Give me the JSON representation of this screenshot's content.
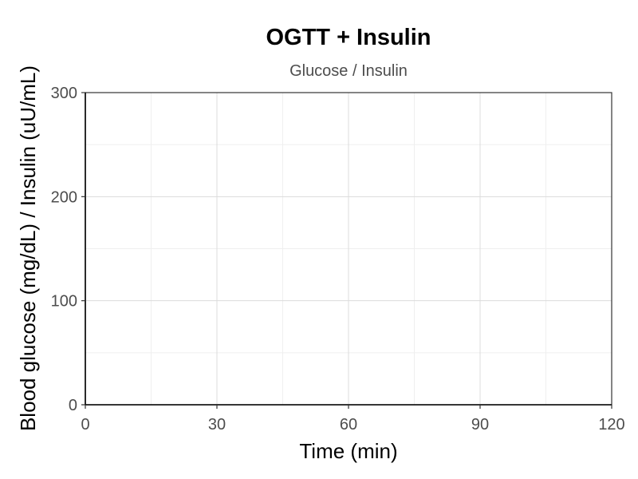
{
  "chart_data": {
    "type": "line",
    "title": "OGTT + Insulin",
    "subtitle": "Glucose / Insulin",
    "xlabel": "Time (min)",
    "ylabel": "Blood glucose (mg/dL) / Insulin (uU/mL)",
    "xlim": [
      0,
      120
    ],
    "ylim": [
      0,
      300
    ],
    "x_ticks": [
      0,
      30,
      60,
      90,
      120
    ],
    "y_ticks": [
      0,
      100,
      200,
      300
    ],
    "x_minor_ticks": [
      15,
      45,
      75,
      105
    ],
    "y_minor_ticks": [
      50,
      150,
      250
    ],
    "grid": true,
    "series": []
  }
}
